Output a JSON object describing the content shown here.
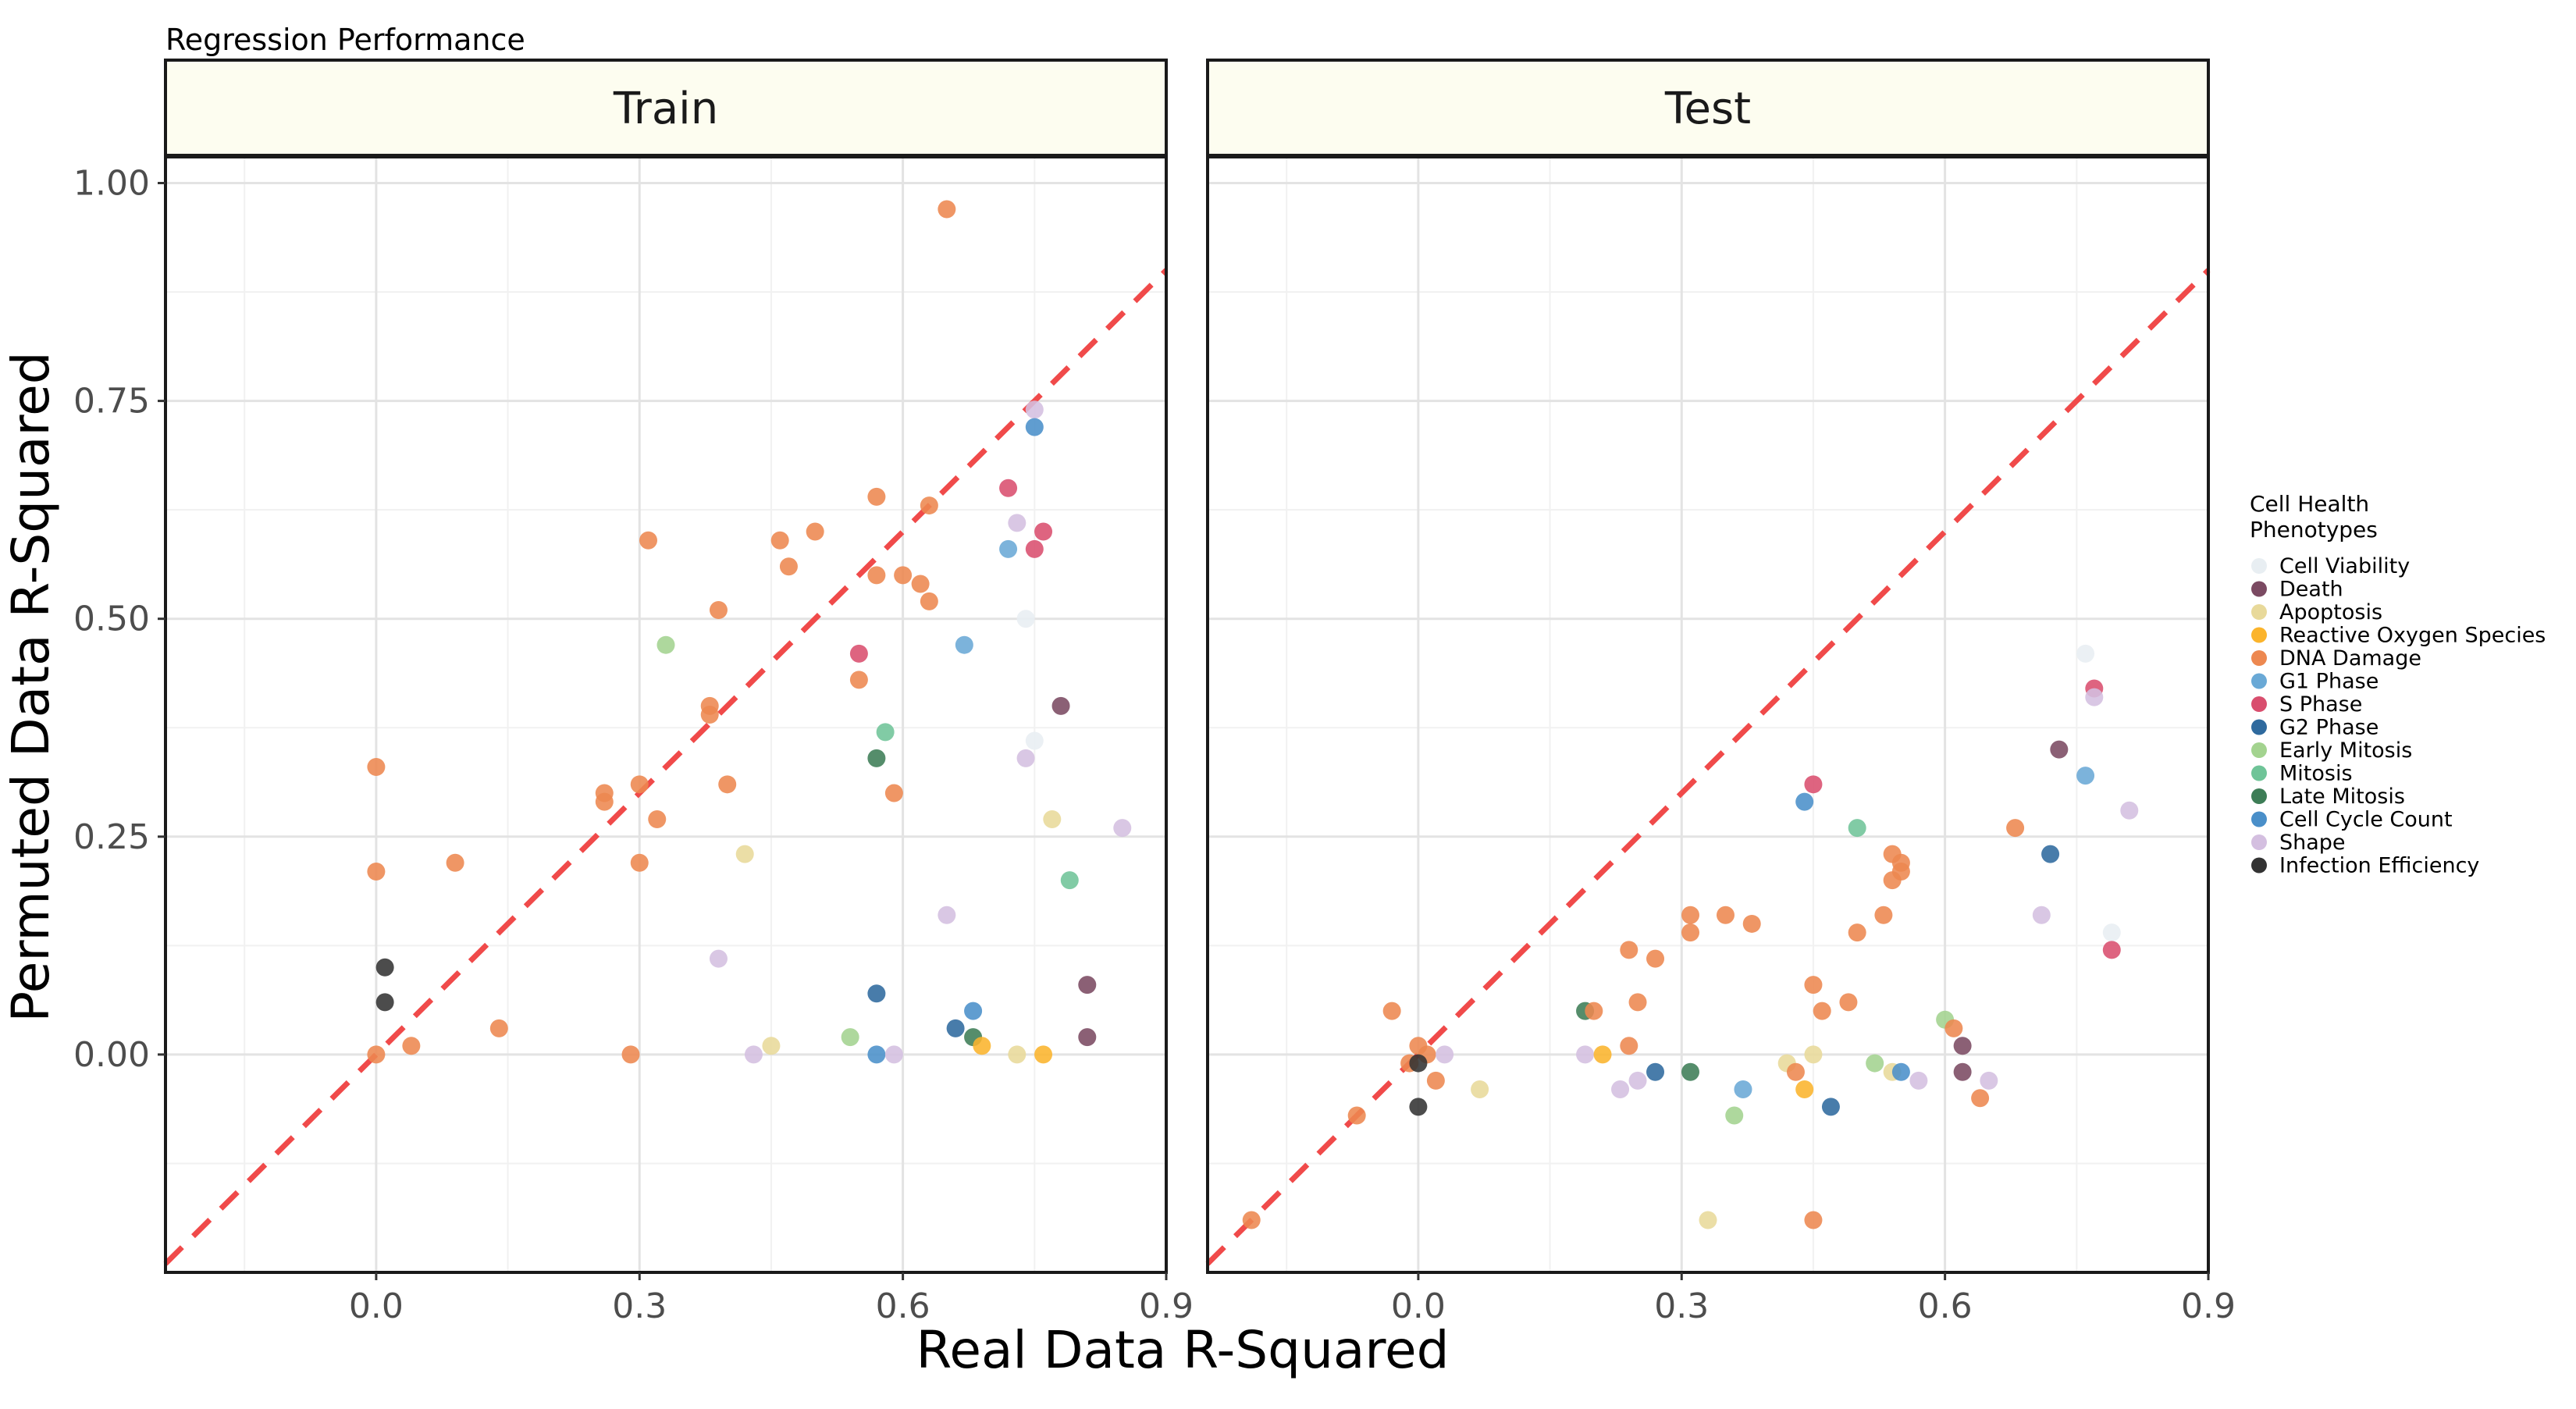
{
  "chart_data": {
    "type": "scatter",
    "title": "Regression Performance",
    "xlabel": "Real Data R-Squared",
    "ylabel": "Permuted Data R-Squared",
    "xlim": [
      -0.24,
      0.9
    ],
    "ylim": [
      -0.25,
      1.03
    ],
    "xticks": [
      "0.0",
      "0.3",
      "0.6",
      "0.9"
    ],
    "xtick_values": [
      0.0,
      0.3,
      0.6,
      0.9
    ],
    "yticks": [
      "0.00",
      "0.25",
      "0.50",
      "0.75",
      "1.00"
    ],
    "ytick_values": [
      0.0,
      0.25,
      0.5,
      0.75,
      1.0
    ],
    "reference_line": {
      "slope": 1,
      "intercept": 0,
      "color": "#f04a4a",
      "style": "dashed"
    },
    "legend": {
      "title": "Cell Health\nPhenotypes",
      "placement": "right",
      "entries": [
        {
          "name": "Cell Viability",
          "color": "#e8eef2"
        },
        {
          "name": "Death",
          "color": "#7b4a62"
        },
        {
          "name": "Apoptosis",
          "color": "#e8d99a"
        },
        {
          "name": "Reactive Oxygen Species",
          "color": "#fbb42c"
        },
        {
          "name": "DNA Damage",
          "color": "#ed8850"
        },
        {
          "name": "G1 Phase",
          "color": "#6aa9d6"
        },
        {
          "name": "S Phase",
          "color": "#d94e6e"
        },
        {
          "name": "G2 Phase",
          "color": "#2f6a9e"
        },
        {
          "name": "Early Mitosis",
          "color": "#a3d38f"
        },
        {
          "name": "Mitosis",
          "color": "#6fc498"
        },
        {
          "name": "Late Mitosis",
          "color": "#3d7d56"
        },
        {
          "name": "Cell Cycle Count",
          "color": "#4a8fc9"
        },
        {
          "name": "Shape",
          "color": "#d4bfe0"
        },
        {
          "name": "Infection Efficiency",
          "color": "#333333"
        }
      ]
    },
    "panels": [
      {
        "name": "Train",
        "points": [
          {
            "g": "DNA Damage",
            "x": 0.65,
            "y": 0.97
          },
          {
            "g": "Shape",
            "x": 0.75,
            "y": 0.74
          },
          {
            "g": "Cell Cycle Count",
            "x": 0.75,
            "y": 0.72
          },
          {
            "g": "S Phase",
            "x": 0.72,
            "y": 0.65
          },
          {
            "g": "DNA Damage",
            "x": 0.57,
            "y": 0.64
          },
          {
            "g": "DNA Damage",
            "x": 0.63,
            "y": 0.63
          },
          {
            "g": "Shape",
            "x": 0.73,
            "y": 0.61
          },
          {
            "g": "S Phase",
            "x": 0.76,
            "y": 0.6
          },
          {
            "g": "DNA Damage",
            "x": 0.5,
            "y": 0.6
          },
          {
            "g": "DNA Damage",
            "x": 0.31,
            "y": 0.59
          },
          {
            "g": "DNA Damage",
            "x": 0.46,
            "y": 0.59
          },
          {
            "g": "G1 Phase",
            "x": 0.72,
            "y": 0.58
          },
          {
            "g": "S Phase",
            "x": 0.75,
            "y": 0.58
          },
          {
            "g": "DNA Damage",
            "x": 0.47,
            "y": 0.56
          },
          {
            "g": "DNA Damage",
            "x": 0.57,
            "y": 0.55
          },
          {
            "g": "DNA Damage",
            "x": 0.6,
            "y": 0.55
          },
          {
            "g": "DNA Damage",
            "x": 0.62,
            "y": 0.54
          },
          {
            "g": "DNA Damage",
            "x": 0.63,
            "y": 0.52
          },
          {
            "g": "DNA Damage",
            "x": 0.39,
            "y": 0.51
          },
          {
            "g": "Cell Viability",
            "x": 0.74,
            "y": 0.5
          },
          {
            "g": "Early Mitosis",
            "x": 0.33,
            "y": 0.47
          },
          {
            "g": "G1 Phase",
            "x": 0.67,
            "y": 0.47
          },
          {
            "g": "S Phase",
            "x": 0.55,
            "y": 0.46
          },
          {
            "g": "DNA Damage",
            "x": 0.55,
            "y": 0.43
          },
          {
            "g": "Death",
            "x": 0.78,
            "y": 0.4
          },
          {
            "g": "DNA Damage",
            "x": 0.38,
            "y": 0.4
          },
          {
            "g": "DNA Damage",
            "x": 0.38,
            "y": 0.39
          },
          {
            "g": "Mitosis",
            "x": 0.58,
            "y": 0.37
          },
          {
            "g": "Cell Viability",
            "x": 0.75,
            "y": 0.36
          },
          {
            "g": "Late Mitosis",
            "x": 0.57,
            "y": 0.34
          },
          {
            "g": "Shape",
            "x": 0.74,
            "y": 0.34
          },
          {
            "g": "DNA Damage",
            "x": 0.0,
            "y": 0.33
          },
          {
            "g": "DNA Damage",
            "x": 0.3,
            "y": 0.31
          },
          {
            "g": "DNA Damage",
            "x": 0.4,
            "y": 0.31
          },
          {
            "g": "DNA Damage",
            "x": 0.26,
            "y": 0.3
          },
          {
            "g": "DNA Damage",
            "x": 0.59,
            "y": 0.3
          },
          {
            "g": "DNA Damage",
            "x": 0.26,
            "y": 0.29
          },
          {
            "g": "DNA Damage",
            "x": 0.32,
            "y": 0.27
          },
          {
            "g": "Apoptosis",
            "x": 0.77,
            "y": 0.27
          },
          {
            "g": "Shape",
            "x": 0.85,
            "y": 0.26
          },
          {
            "g": "Apoptosis",
            "x": 0.42,
            "y": 0.23
          },
          {
            "g": "DNA Damage",
            "x": 0.09,
            "y": 0.22
          },
          {
            "g": "DNA Damage",
            "x": 0.3,
            "y": 0.22
          },
          {
            "g": "DNA Damage",
            "x": 0.0,
            "y": 0.21
          },
          {
            "g": "Mitosis",
            "x": 0.79,
            "y": 0.2
          },
          {
            "g": "Shape",
            "x": 0.65,
            "y": 0.16
          },
          {
            "g": "Shape",
            "x": 0.39,
            "y": 0.11
          },
          {
            "g": "Infection Efficiency",
            "x": 0.01,
            "y": 0.1
          },
          {
            "g": "Death",
            "x": 0.81,
            "y": 0.08
          },
          {
            "g": "G2 Phase",
            "x": 0.57,
            "y": 0.07
          },
          {
            "g": "Infection Efficiency",
            "x": 0.01,
            "y": 0.06
          },
          {
            "g": "Cell Cycle Count",
            "x": 0.68,
            "y": 0.05
          },
          {
            "g": "DNA Damage",
            "x": 0.14,
            "y": 0.03
          },
          {
            "g": "G2 Phase",
            "x": 0.66,
            "y": 0.03
          },
          {
            "g": "Early Mitosis",
            "x": 0.54,
            "y": 0.02
          },
          {
            "g": "Late Mitosis",
            "x": 0.68,
            "y": 0.02
          },
          {
            "g": "Death",
            "x": 0.81,
            "y": 0.02
          },
          {
            "g": "DNA Damage",
            "x": 0.04,
            "y": 0.01
          },
          {
            "g": "Apoptosis",
            "x": 0.45,
            "y": 0.01
          },
          {
            "g": "Reactive Oxygen Species",
            "x": 0.69,
            "y": 0.01
          },
          {
            "g": "DNA Damage",
            "x": 0.0,
            "y": 0.0
          },
          {
            "g": "DNA Damage",
            "x": 0.29,
            "y": 0.0
          },
          {
            "g": "Shape",
            "x": 0.43,
            "y": 0.0
          },
          {
            "g": "Cell Cycle Count",
            "x": 0.57,
            "y": 0.0
          },
          {
            "g": "Shape",
            "x": 0.59,
            "y": 0.0
          },
          {
            "g": "Apoptosis",
            "x": 0.73,
            "y": 0.0
          },
          {
            "g": "Reactive Oxygen Species",
            "x": 0.76,
            "y": 0.0
          }
        ]
      },
      {
        "name": "Test",
        "points": [
          {
            "g": "Cell Viability",
            "x": 0.76,
            "y": 0.46
          },
          {
            "g": "S Phase",
            "x": 0.77,
            "y": 0.42
          },
          {
            "g": "Shape",
            "x": 0.77,
            "y": 0.41
          },
          {
            "g": "Death",
            "x": 0.73,
            "y": 0.35
          },
          {
            "g": "G1 Phase",
            "x": 0.76,
            "y": 0.32
          },
          {
            "g": "S Phase",
            "x": 0.45,
            "y": 0.31
          },
          {
            "g": "Cell Cycle Count",
            "x": 0.44,
            "y": 0.29
          },
          {
            "g": "Shape",
            "x": 0.81,
            "y": 0.28
          },
          {
            "g": "Mitosis",
            "x": 0.5,
            "y": 0.26
          },
          {
            "g": "DNA Damage",
            "x": 0.68,
            "y": 0.26
          },
          {
            "g": "G2 Phase",
            "x": 0.72,
            "y": 0.23
          },
          {
            "g": "DNA Damage",
            "x": 0.54,
            "y": 0.23
          },
          {
            "g": "DNA Damage",
            "x": 0.55,
            "y": 0.22
          },
          {
            "g": "DNA Damage",
            "x": 0.55,
            "y": 0.21
          },
          {
            "g": "DNA Damage",
            "x": 0.54,
            "y": 0.2
          },
          {
            "g": "DNA Damage",
            "x": 0.31,
            "y": 0.16
          },
          {
            "g": "DNA Damage",
            "x": 0.35,
            "y": 0.16
          },
          {
            "g": "DNA Damage",
            "x": 0.53,
            "y": 0.16
          },
          {
            "g": "Shape",
            "x": 0.71,
            "y": 0.16
          },
          {
            "g": "DNA Damage",
            "x": 0.38,
            "y": 0.15
          },
          {
            "g": "DNA Damage",
            "x": 0.31,
            "y": 0.14
          },
          {
            "g": "DNA Damage",
            "x": 0.5,
            "y": 0.14
          },
          {
            "g": "Cell Viability",
            "x": 0.79,
            "y": 0.14
          },
          {
            "g": "DNA Damage",
            "x": 0.24,
            "y": 0.12
          },
          {
            "g": "S Phase",
            "x": 0.79,
            "y": 0.12
          },
          {
            "g": "DNA Damage",
            "x": 0.27,
            "y": 0.11
          },
          {
            "g": "DNA Damage",
            "x": 0.45,
            "y": 0.08
          },
          {
            "g": "DNA Damage",
            "x": 0.25,
            "y": 0.06
          },
          {
            "g": "DNA Damage",
            "x": 0.49,
            "y": 0.06
          },
          {
            "g": "DNA Damage",
            "x": -0.03,
            "y": 0.05
          },
          {
            "g": "Late Mitosis",
            "x": 0.19,
            "y": 0.05
          },
          {
            "g": "DNA Damage",
            "x": 0.2,
            "y": 0.05
          },
          {
            "g": "DNA Damage",
            "x": 0.46,
            "y": 0.05
          },
          {
            "g": "Early Mitosis",
            "x": 0.6,
            "y": 0.04
          },
          {
            "g": "DNA Damage",
            "x": 0.61,
            "y": 0.03
          },
          {
            "g": "DNA Damage",
            "x": 0.0,
            "y": 0.01
          },
          {
            "g": "DNA Damage",
            "x": 0.24,
            "y": 0.01
          },
          {
            "g": "Death",
            "x": 0.62,
            "y": 0.01
          },
          {
            "g": "DNA Damage",
            "x": 0.01,
            "y": 0.0
          },
          {
            "g": "Shape",
            "x": 0.03,
            "y": 0.0
          },
          {
            "g": "Shape",
            "x": 0.19,
            "y": 0.0
          },
          {
            "g": "Reactive Oxygen Species",
            "x": 0.21,
            "y": 0.0
          },
          {
            "g": "Apoptosis",
            "x": 0.45,
            "y": 0.0
          },
          {
            "g": "DNA Damage",
            "x": -0.01,
            "y": -0.01
          },
          {
            "g": "Infection Efficiency",
            "x": 0.0,
            "y": -0.01
          },
          {
            "g": "Apoptosis",
            "x": 0.42,
            "y": -0.01
          },
          {
            "g": "Early Mitosis",
            "x": 0.52,
            "y": -0.01
          },
          {
            "g": "G2 Phase",
            "x": 0.27,
            "y": -0.02
          },
          {
            "g": "Late Mitosis",
            "x": 0.31,
            "y": -0.02
          },
          {
            "g": "DNA Damage",
            "x": 0.43,
            "y": -0.02
          },
          {
            "g": "Apoptosis",
            "x": 0.54,
            "y": -0.02
          },
          {
            "g": "Cell Cycle Count",
            "x": 0.55,
            "y": -0.02
          },
          {
            "g": "Death",
            "x": 0.62,
            "y": -0.02
          },
          {
            "g": "DNA Damage",
            "x": 0.02,
            "y": -0.03
          },
          {
            "g": "Shape",
            "x": 0.25,
            "y": -0.03
          },
          {
            "g": "Shape",
            "x": 0.57,
            "y": -0.03
          },
          {
            "g": "Shape",
            "x": 0.65,
            "y": -0.03
          },
          {
            "g": "Apoptosis",
            "x": 0.07,
            "y": -0.04
          },
          {
            "g": "Shape",
            "x": 0.23,
            "y": -0.04
          },
          {
            "g": "G1 Phase",
            "x": 0.37,
            "y": -0.04
          },
          {
            "g": "Reactive Oxygen Species",
            "x": 0.44,
            "y": -0.04
          },
          {
            "g": "DNA Damage",
            "x": 0.64,
            "y": -0.05
          },
          {
            "g": "Infection Efficiency",
            "x": 0.0,
            "y": -0.06
          },
          {
            "g": "G2 Phase",
            "x": 0.47,
            "y": -0.06
          },
          {
            "g": "DNA Damage",
            "x": -0.07,
            "y": -0.07
          },
          {
            "g": "Early Mitosis",
            "x": 0.36,
            "y": -0.07
          },
          {
            "g": "DNA Damage",
            "x": -0.19,
            "y": -0.19
          },
          {
            "g": "Apoptosis",
            "x": 0.33,
            "y": -0.19
          },
          {
            "g": "DNA Damage",
            "x": 0.45,
            "y": -0.19
          }
        ]
      }
    ]
  }
}
